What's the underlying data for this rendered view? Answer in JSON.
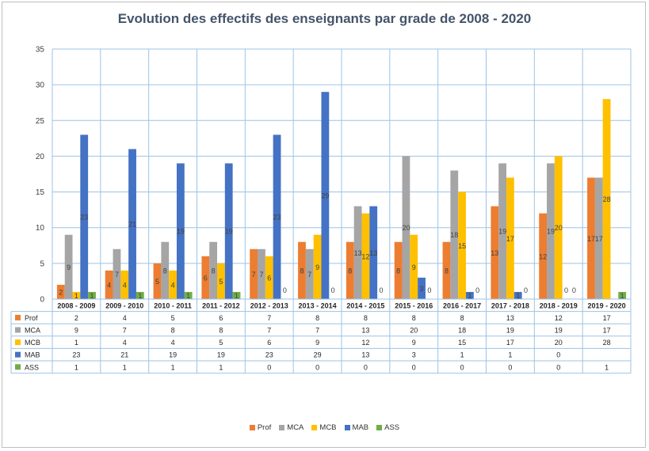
{
  "chart_data": {
    "type": "bar",
    "title": "Evolution des effectifs des enseignants par grade de 2008 - 2020",
    "categories": [
      "2008 - 2009",
      "2009 - 2010",
      "2010 - 2011",
      "2011 - 2012",
      "2012 - 2013",
      "2013 - 2014",
      "2014 - 2015",
      "2015 - 2016",
      "2016 - 2017",
      "2017 - 2018",
      "2018 - 2019",
      "2019 - 2020"
    ],
    "series": [
      {
        "name": "Prof",
        "color": "#ed7d31",
        "values": [
          2,
          4,
          5,
          6,
          7,
          8,
          8,
          8,
          8,
          13,
          12,
          17
        ],
        "labels": [
          "2",
          "4",
          "5",
          "6",
          "7",
          "8",
          "8",
          "8",
          "8",
          "13",
          "12",
          "17"
        ]
      },
      {
        "name": "MCA",
        "color": "#a5a5a5",
        "values": [
          9,
          7,
          8,
          8,
          7,
          7,
          13,
          20,
          18,
          19,
          19,
          17
        ],
        "labels": [
          "9",
          "7",
          "8",
          "8",
          "7",
          "7",
          "13",
          "20",
          "18",
          "19",
          "19",
          "17"
        ]
      },
      {
        "name": "MCB",
        "color": "#ffc000",
        "values": [
          1,
          4,
          4,
          5,
          6,
          9,
          12,
          9,
          15,
          17,
          20,
          28
        ],
        "labels": [
          "1",
          "4",
          "4",
          "5",
          "6",
          "9",
          "12",
          "9",
          "15",
          "17",
          "20",
          "28"
        ]
      },
      {
        "name": "MAB",
        "color": "#4472c4",
        "values": [
          23,
          21,
          19,
          19,
          23,
          29,
          13,
          3,
          1,
          1,
          0,
          null
        ],
        "labels": [
          "23",
          "21",
          "19",
          "19",
          "23",
          "29",
          "13",
          "3",
          "1",
          "1",
          "0",
          ""
        ]
      },
      {
        "name": "ASS",
        "color": "#70ad47",
        "values": [
          1,
          1,
          1,
          1,
          0,
          0,
          0,
          0,
          0,
          0,
          0,
          1
        ],
        "labels": [
          "1",
          "1",
          "1",
          "1",
          "0",
          "0",
          "0",
          "0",
          "0",
          "0",
          "0",
          "1"
        ]
      }
    ],
    "ylim": [
      0,
      35
    ],
    "yticks": [
      "0",
      "5",
      "10",
      "15",
      "20",
      "25",
      "30",
      "35"
    ],
    "grid": true,
    "legend_position": "bottom",
    "data_table": true
  }
}
